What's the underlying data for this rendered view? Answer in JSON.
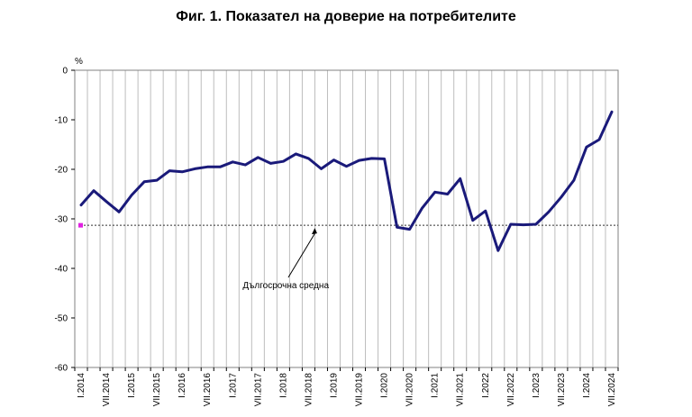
{
  "chart_data": {
    "type": "line",
    "title": "Фиг. 1. Показател на доверие на потребителите",
    "unit_label": "%",
    "ylim": [
      -60,
      0
    ],
    "y_ticks": [
      0,
      -10,
      -20,
      -30,
      -40,
      -50,
      -60
    ],
    "grid": "vertical lines per quarter",
    "x_tick_labels": [
      "I.2014",
      "VII.2014",
      "I.2015",
      "VII.2015",
      "I.2016",
      "VII.2016",
      "I.2017",
      "VII.2017",
      "I.2018",
      "VII.2018",
      "I.2019",
      "VII.2019",
      "I.2020",
      "VII.2020",
      "I.2021",
      "VII.2021",
      "I.2022",
      "VII.2022",
      "I.2023",
      "VII.2023",
      "I.2024",
      "VII.2024"
    ],
    "categories": [
      "I.2014",
      "IV.2014",
      "VII.2014",
      "X.2014",
      "I.2015",
      "IV.2015",
      "VII.2015",
      "X.2015",
      "I.2016",
      "IV.2016",
      "VII.2016",
      "X.2016",
      "I.2017",
      "IV.2017",
      "VII.2017",
      "X.2017",
      "I.2018",
      "IV.2018",
      "VII.2018",
      "X.2018",
      "I.2019",
      "IV.2019",
      "VII.2019",
      "X.2019",
      "I.2020",
      "IV.2020",
      "VII.2020",
      "X.2020",
      "I.2021",
      "IV.2021",
      "VII.2021",
      "X.2021",
      "I.2022",
      "IV.2022",
      "VII.2022",
      "X.2022",
      "I.2023",
      "IV.2023",
      "VII.2023",
      "X.2023",
      "I.2024",
      "IV.2024",
      "VII.2024"
    ],
    "series": [
      {
        "color": "#1a1a7a",
        "values": [
          -27.2,
          -24.3,
          -26.5,
          -28.6,
          -25.2,
          -22.5,
          -22.2,
          -20.3,
          -20.5,
          -19.9,
          -19.5,
          -19.5,
          -18.5,
          -19.1,
          -17.6,
          -18.8,
          -18.4,
          -16.9,
          -17.8,
          -19.9,
          -18.1,
          -19.4,
          -18.2,
          -17.8,
          -17.9,
          -31.7,
          -32.1,
          -27.8,
          -24.6,
          -25.0,
          -21.9,
          -30.3,
          -28.4,
          -36.4,
          -31.1,
          -31.2,
          -31.1,
          -28.6,
          -25.6,
          -22.2,
          -15.5,
          -14.0,
          -8.4
        ]
      }
    ],
    "reference_line": {
      "label": "Дългосрочна средна",
      "value": -31.3,
      "marker_color": "#e020e0"
    }
  }
}
